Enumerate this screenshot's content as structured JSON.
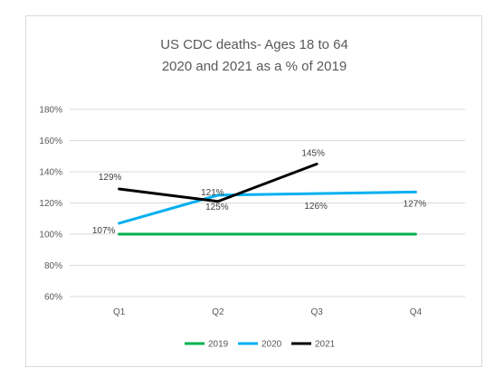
{
  "chart_data": {
    "type": "line",
    "title_lines": [
      "US CDC deaths- Ages 18 to 64",
      "2020 and 2021 as a % of 2019"
    ],
    "categories": [
      "Q1",
      "Q2",
      "Q3",
      "Q4"
    ],
    "ylim": [
      60,
      180
    ],
    "y_ticks": [
      60,
      80,
      100,
      120,
      140,
      160,
      180
    ],
    "y_tick_labels": [
      "60%",
      "80%",
      "100%",
      "120%",
      "140%",
      "160%",
      "180%"
    ],
    "grid": "horizontal",
    "legend_position": "bottom",
    "series": [
      {
        "name": "2019",
        "color": "#00b050",
        "values": [
          100,
          100,
          100,
          100
        ],
        "data_labels": [
          null,
          null,
          null,
          null
        ]
      },
      {
        "name": "2020",
        "color": "#00b0f0",
        "values": [
          107,
          125,
          126,
          127
        ],
        "data_labels": [
          "107%",
          "125%",
          "126%",
          "127%"
        ]
      },
      {
        "name": "2021",
        "color": "#000000",
        "values": [
          129,
          121,
          145,
          null
        ],
        "data_labels": [
          "129%",
          "121%",
          "145%",
          null
        ]
      }
    ]
  }
}
